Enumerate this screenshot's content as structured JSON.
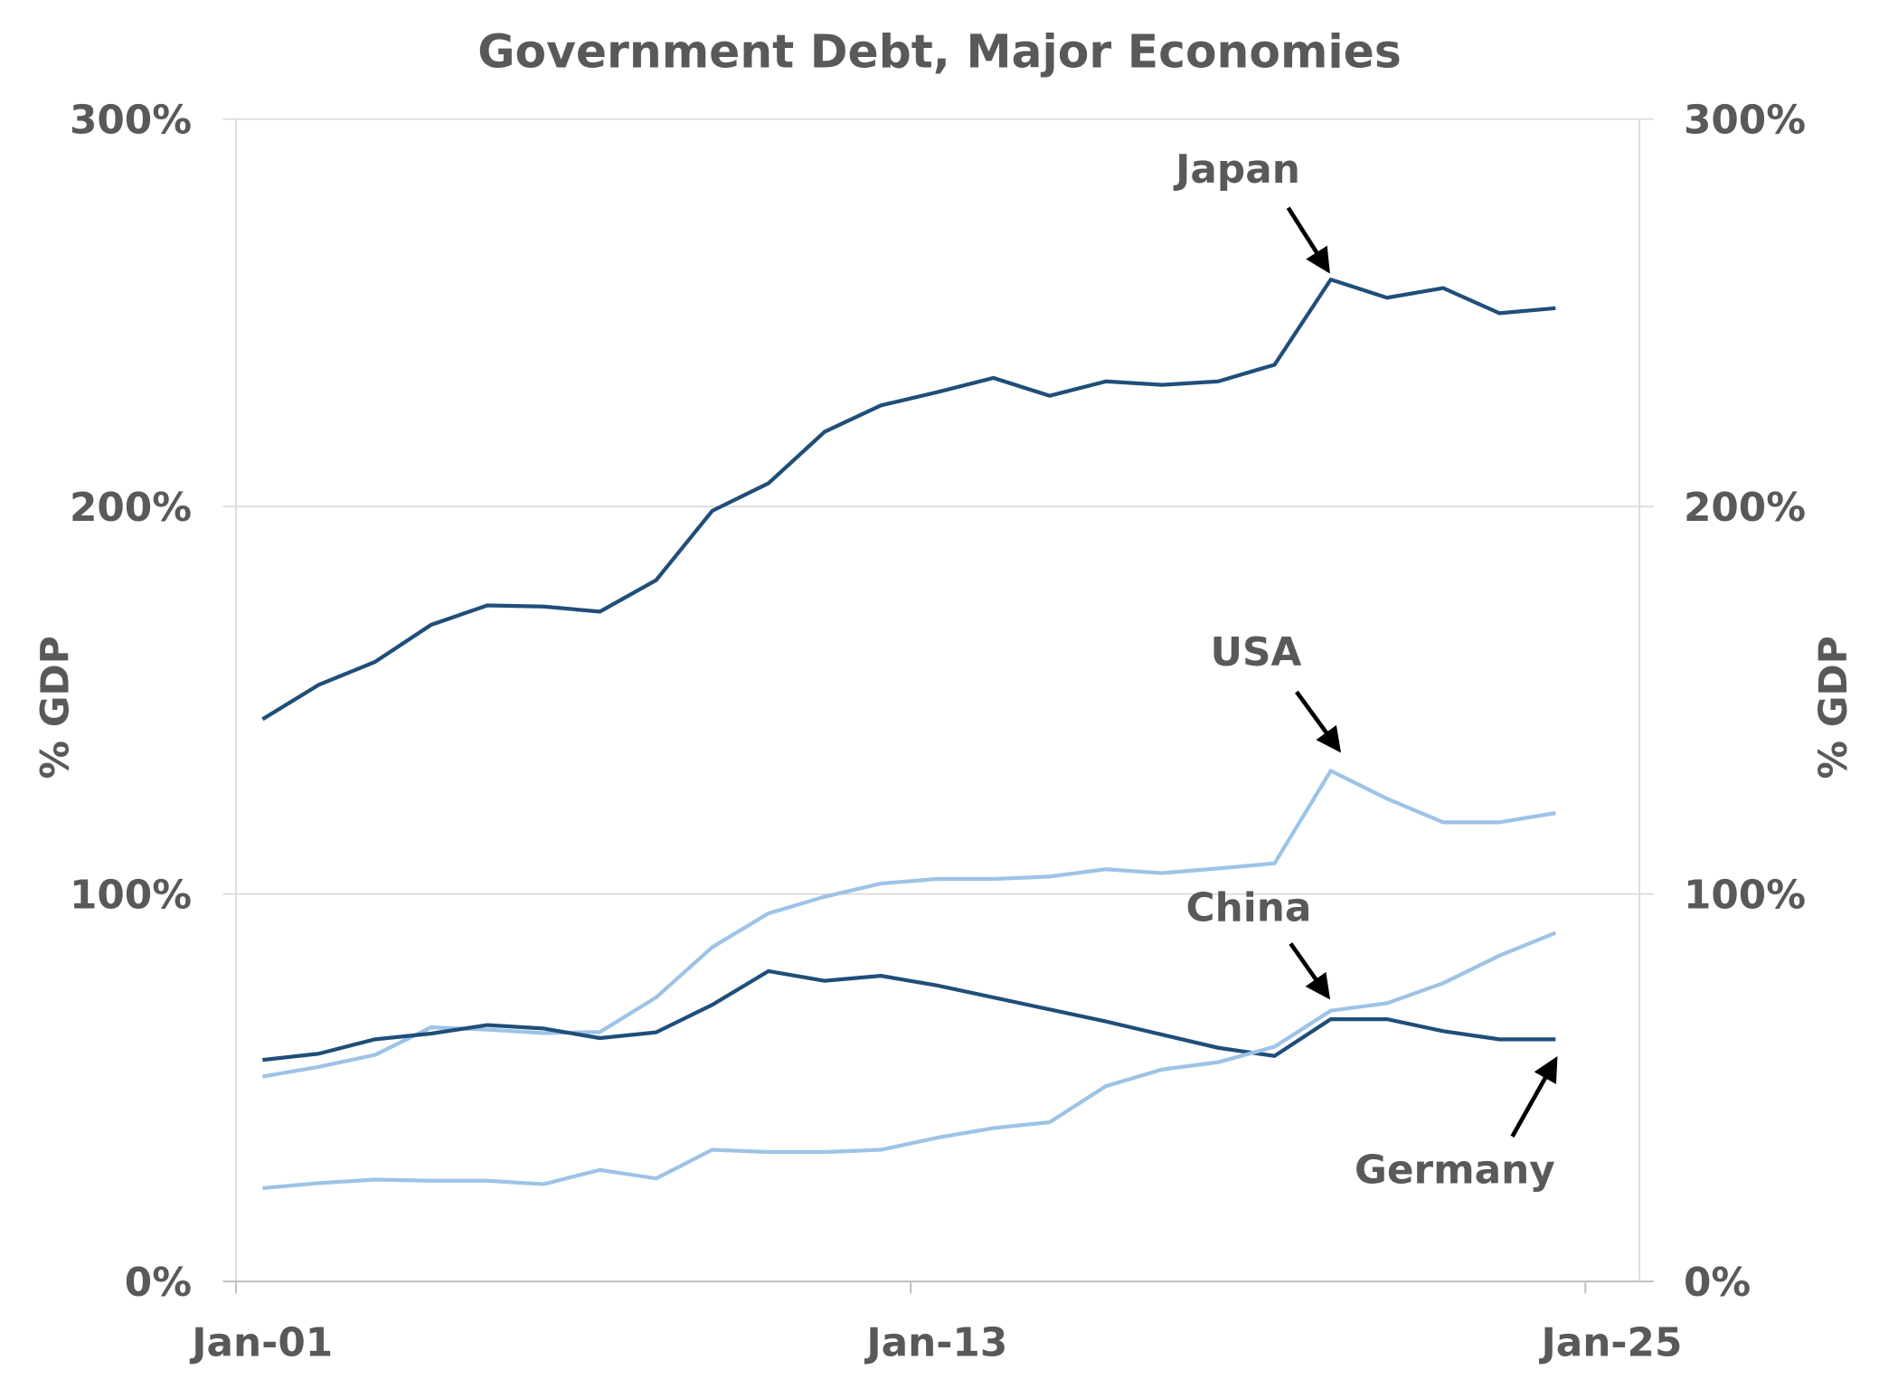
{
  "chart_data": {
    "type": "line",
    "title": "Government Debt, Major Economies",
    "ylabel": "% GDP",
    "ylabel_right": "% GDP",
    "xlabel": "",
    "ylim": [
      0,
      300
    ],
    "yticks": [
      0,
      100,
      200,
      300
    ],
    "ytick_labels": [
      "0%",
      "100%",
      "200%",
      "300%"
    ],
    "xtick_labels": [
      "Jan-01",
      "Jan-13",
      "Jan-25"
    ],
    "xtick_years": [
      2001,
      2013,
      2025
    ],
    "grid": "horizontal",
    "legend": "none (inline annotations)",
    "x": [
      2001,
      2002,
      2003,
      2004,
      2005,
      2006,
      2007,
      2008,
      2009,
      2010,
      2011,
      2012,
      2013,
      2014,
      2015,
      2016,
      2017,
      2018,
      2019,
      2020,
      2021,
      2022,
      2023,
      2024
    ],
    "series": [
      {
        "name": "Japan",
        "color": "#1f4e79",
        "values": [
          145.1,
          154.0,
          159.9,
          169.5,
          174.5,
          174.2,
          172.9,
          181.0,
          198.9,
          206.0,
          219.3,
          226.1,
          229.5,
          233.2,
          228.6,
          232.3,
          231.4,
          232.3,
          236.6,
          258.6,
          253.9,
          256.4,
          249.9,
          251.2
        ]
      },
      {
        "name": "USA",
        "color": "#9dc3e6",
        "values": [
          52.9,
          55.4,
          58.5,
          65.6,
          65.0,
          64.1,
          64.4,
          73.3,
          86.3,
          95.0,
          99.3,
          102.7,
          103.9,
          103.9,
          104.5,
          106.4,
          105.4,
          106.6,
          107.9,
          131.8,
          124.6,
          118.5,
          118.5,
          120.9
        ]
      },
      {
        "name": "Germany",
        "color": "#1f4e79",
        "values": [
          57.2,
          58.8,
          62.5,
          64.0,
          66.2,
          65.3,
          62.8,
          64.3,
          71.4,
          80.1,
          77.6,
          78.9,
          76.4,
          73.3,
          70.2,
          67.1,
          63.7,
          60.3,
          58.2,
          67.7,
          67.7,
          64.6,
          62.5,
          62.5
        ]
      },
      {
        "name": "China",
        "color": "#9dc3e6",
        "values": [
          24.1,
          25.4,
          26.3,
          26.0,
          26.0,
          25.1,
          28.8,
          26.6,
          34.0,
          33.4,
          33.4,
          34.0,
          37.1,
          39.6,
          41.1,
          50.4,
          54.7,
          56.6,
          60.6,
          69.9,
          71.8,
          77.0,
          84.1,
          90.0
        ]
      }
    ],
    "annotations": [
      "Japan",
      "USA",
      "China",
      "Germany"
    ]
  }
}
